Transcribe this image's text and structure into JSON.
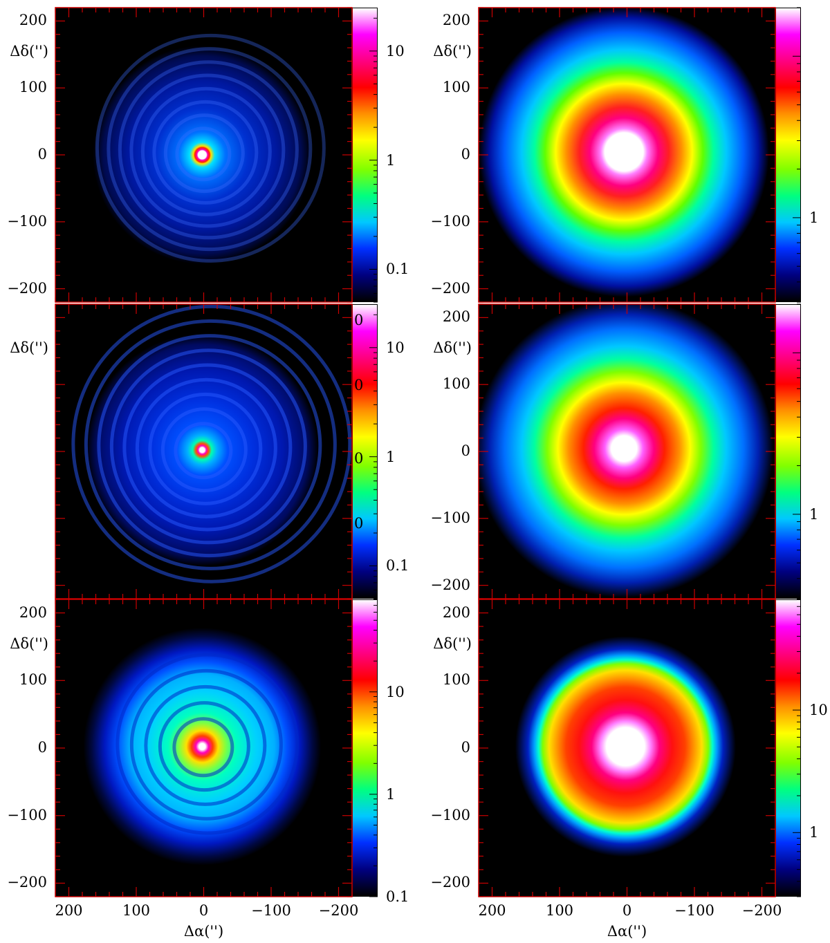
{
  "chart_data": [
    {
      "type": "heatmap",
      "panel": "top-left",
      "ylabel": "Δδ('')",
      "xlabel": "",
      "xlim": [
        220,
        -220
      ],
      "ylim": [
        -220,
        220
      ],
      "yticks": [
        "200",
        "100",
        "0",
        "−100",
        "−200"
      ],
      "colorbar": {
        "scale": "log",
        "range": [
          0.05,
          25
        ],
        "ticks": [
          "10",
          "1",
          "0.1"
        ]
      },
      "structure": {
        "core_peak": "white",
        "arms": "spiral rings, dim blue",
        "arms_extent_arcsec": 200
      }
    },
    {
      "type": "heatmap",
      "panel": "top-right",
      "ylabel": "Δδ('')",
      "xlabel": "",
      "xlim": [
        220,
        -220
      ],
      "ylim": [
        -220,
        220
      ],
      "yticks": [
        "200",
        "100",
        "0",
        "−100",
        "−200"
      ],
      "colorbar": {
        "scale": "log",
        "range": [
          0.3,
          20
        ],
        "ticks": [
          "1"
        ]
      },
      "structure": {
        "core_peak": "white",
        "arms": "broad smooth envelope",
        "arms_extent_arcsec": 200
      }
    },
    {
      "type": "heatmap",
      "panel": "middle-left",
      "ylabel": "Δδ('')",
      "xlabel": "",
      "xlim": [
        220,
        -220
      ],
      "ylim": [
        -220,
        220
      ],
      "yticks": [],
      "colorbar": {
        "scale": "log",
        "range": [
          0.05,
          25
        ],
        "ticks": [
          "10",
          "1",
          "0.1"
        ]
      },
      "overlapping_labels": [
        "0",
        "0",
        "0",
        "0"
      ],
      "structure": {
        "core_peak": "magenta",
        "arms": "tight spiral, blue",
        "arms_extent_arcsec": 210
      }
    },
    {
      "type": "heatmap",
      "panel": "middle-right",
      "ylabel": "Δδ('')",
      "xlabel": "",
      "xlim": [
        220,
        -220
      ],
      "ylim": [
        -220,
        220
      ],
      "yticks": [
        "200",
        "100",
        "0",
        "−100",
        "−200"
      ],
      "colorbar": {
        "scale": "log",
        "range": [
          0.3,
          20
        ],
        "ticks": [
          "1"
        ]
      },
      "structure": {
        "core_peak": "white",
        "arms": "broad envelope with shells",
        "arms_extent_arcsec": 210
      }
    },
    {
      "type": "heatmap",
      "panel": "bottom-left",
      "ylabel": "Δδ('')",
      "xlabel": "Δα('')",
      "xlim": [
        220,
        -220
      ],
      "ylim": [
        -220,
        220
      ],
      "xticks": [
        "200",
        "100",
        "0",
        "−100",
        "−200"
      ],
      "yticks": [
        "200",
        "100",
        "0",
        "−100",
        "−200"
      ],
      "colorbar": {
        "scale": "log",
        "range": [
          0.1,
          80
        ],
        "ticks": [
          "10",
          "1",
          "0.1"
        ]
      },
      "structure": {
        "core_peak": "magenta",
        "arms": "noisy spiral shells, cyan",
        "arms_extent_arcsec": 160
      }
    },
    {
      "type": "heatmap",
      "panel": "bottom-right",
      "ylabel": "Δδ('')",
      "xlabel": "Δα('')",
      "xlim": [
        220,
        -220
      ],
      "ylim": [
        -220,
        220
      ],
      "xticks": [
        "200",
        "100",
        "0",
        "−100",
        "−200"
      ],
      "yticks": [
        "200",
        "100",
        "0",
        "−100",
        "−200"
      ],
      "colorbar": {
        "scale": "log",
        "range": [
          0.3,
          80
        ],
        "ticks": [
          "10",
          "1"
        ]
      },
      "structure": {
        "core_peak": "white",
        "arms": "noisy envelope, red-yellow",
        "arms_extent_arcsec": 150
      }
    }
  ],
  "colormap": [
    "#000000",
    "#000080",
    "#0030ff",
    "#00c8ff",
    "#00ff80",
    "#80ff00",
    "#ffff00",
    "#ff9000",
    "#ff0000",
    "#ff0080",
    "#ff00ff",
    "#ffffff"
  ],
  "axis_color": "#cc0000"
}
